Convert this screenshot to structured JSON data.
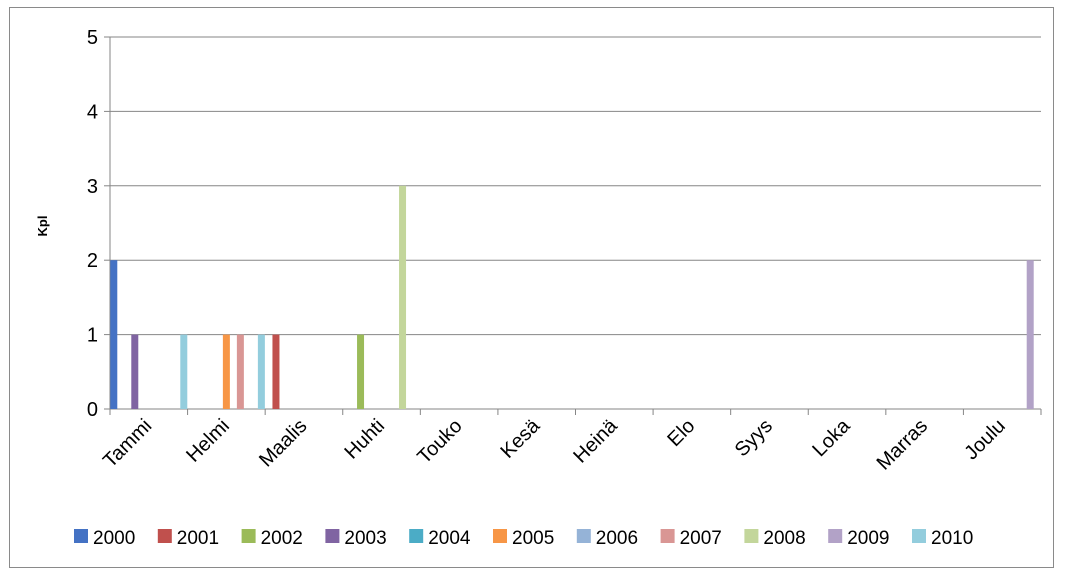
{
  "chart_data": {
    "type": "bar",
    "title": "",
    "xlabel": "",
    "ylabel": "Kpl",
    "ylim": [
      0,
      5
    ],
    "yticks": [
      0,
      1,
      2,
      3,
      4,
      5
    ],
    "grid": true,
    "legend_position": "bottom",
    "categories": [
      "Tammi",
      "Helmi",
      "Maalis",
      "Huhti",
      "Touko",
      "Kesä",
      "Heinä",
      "Elo",
      "Syys",
      "Loka",
      "Marras",
      "Joulu"
    ],
    "series": [
      {
        "name": "2000",
        "color": "#4472C4",
        "values": [
          2,
          0,
          0,
          0,
          0,
          0,
          0,
          0,
          0,
          0,
          0,
          0
        ]
      },
      {
        "name": "2001",
        "color": "#C0504D",
        "values": [
          0,
          0,
          1,
          0,
          0,
          0,
          0,
          0,
          0,
          0,
          0,
          0
        ]
      },
      {
        "name": "2002",
        "color": "#9BBB59",
        "values": [
          0,
          0,
          0,
          1,
          0,
          0,
          0,
          0,
          0,
          0,
          0,
          0
        ]
      },
      {
        "name": "2003",
        "color": "#8064A2",
        "values": [
          1,
          0,
          0,
          0,
          0,
          0,
          0,
          0,
          0,
          0,
          0,
          0
        ]
      },
      {
        "name": "2004",
        "color": "#4BACC6",
        "values": [
          0,
          0,
          0,
          0,
          0,
          0,
          0,
          0,
          0,
          0,
          0,
          0
        ]
      },
      {
        "name": "2005",
        "color": "#F79646",
        "values": [
          0,
          1,
          0,
          0,
          0,
          0,
          0,
          0,
          0,
          0,
          0,
          0
        ]
      },
      {
        "name": "2006",
        "color": "#95B3D7",
        "values": [
          0,
          0,
          0,
          0,
          0,
          0,
          0,
          0,
          0,
          0,
          0,
          0
        ]
      },
      {
        "name": "2007",
        "color": "#D99694",
        "values": [
          0,
          1,
          0,
          0,
          0,
          0,
          0,
          0,
          0,
          0,
          0,
          0
        ]
      },
      {
        "name": "2008",
        "color": "#C3D69B",
        "values": [
          0,
          0,
          0,
          3,
          0,
          0,
          0,
          0,
          0,
          0,
          0,
          0
        ]
      },
      {
        "name": "2009",
        "color": "#B2A2C7",
        "values": [
          0,
          0,
          0,
          0,
          0,
          0,
          0,
          0,
          0,
          0,
          0,
          2
        ]
      },
      {
        "name": "2010",
        "color": "#93CDDD",
        "values": [
          1,
          1,
          0,
          0,
          0,
          0,
          0,
          0,
          0,
          0,
          0,
          0
        ]
      }
    ]
  }
}
